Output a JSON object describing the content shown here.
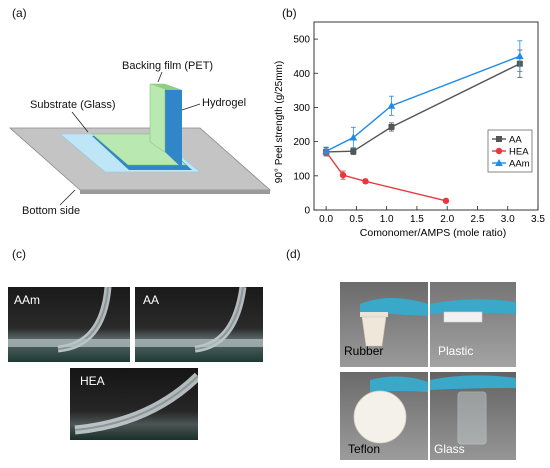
{
  "panels": {
    "a": "(a)",
    "b": "(b)",
    "c": "(c)",
    "d": "(d)"
  },
  "schematic": {
    "backing_film": "Backing film (PET)",
    "substrate": "Substrate (Glass)",
    "hydrogel": "Hydrogel",
    "bottom_side": "Bottom side",
    "colors": {
      "plate": "#c4c4c4",
      "hydrogel": "#2f86c9",
      "film": "#b9e8b0",
      "gel_light": "#bfe6f7"
    }
  },
  "chart_data": {
    "type": "line",
    "xlabel": "Comonomer/AMPS (mole ratio)",
    "ylabel": "90° Peel strength (g/25mm)",
    "xlim": [
      -0.2,
      3.5
    ],
    "ylim": [
      0,
      550
    ],
    "xticks": [
      "0.0",
      "0.5",
      "1.0",
      "1.5",
      "2.0",
      "2.5",
      "3.0",
      "3.5"
    ],
    "yticks": [
      "0",
      "100",
      "200",
      "300",
      "400",
      "500"
    ],
    "legend": "right",
    "series": [
      {
        "name": "AA",
        "color": "#555555",
        "marker": "square",
        "points": [
          {
            "x": 0.0,
            "y": 170,
            "e": 12
          },
          {
            "x": 0.45,
            "y": 172,
            "e": 10
          },
          {
            "x": 1.08,
            "y": 243,
            "e": 12
          },
          {
            "x": 3.2,
            "y": 428,
            "e": 40
          }
        ]
      },
      {
        "name": "HEA",
        "color": "#e8383d",
        "marker": "circle",
        "points": [
          {
            "x": 0.0,
            "y": 170,
            "e": 8
          },
          {
            "x": 0.28,
            "y": 102,
            "e": 12
          },
          {
            "x": 0.65,
            "y": 84,
            "e": 6
          },
          {
            "x": 1.98,
            "y": 27,
            "e": 4
          }
        ]
      },
      {
        "name": "AAm",
        "color": "#1f8be6",
        "marker": "triangle",
        "points": [
          {
            "x": 0.0,
            "y": 172,
            "e": 12
          },
          {
            "x": 0.45,
            "y": 212,
            "e": 30
          },
          {
            "x": 1.08,
            "y": 305,
            "e": 28
          },
          {
            "x": 3.2,
            "y": 450,
            "e": 45
          }
        ]
      }
    ]
  },
  "photos_c": [
    "AAm",
    "AA",
    "HEA"
  ],
  "photos_d": [
    "Rubber",
    "Plastic",
    "Teflon",
    "Glass"
  ]
}
